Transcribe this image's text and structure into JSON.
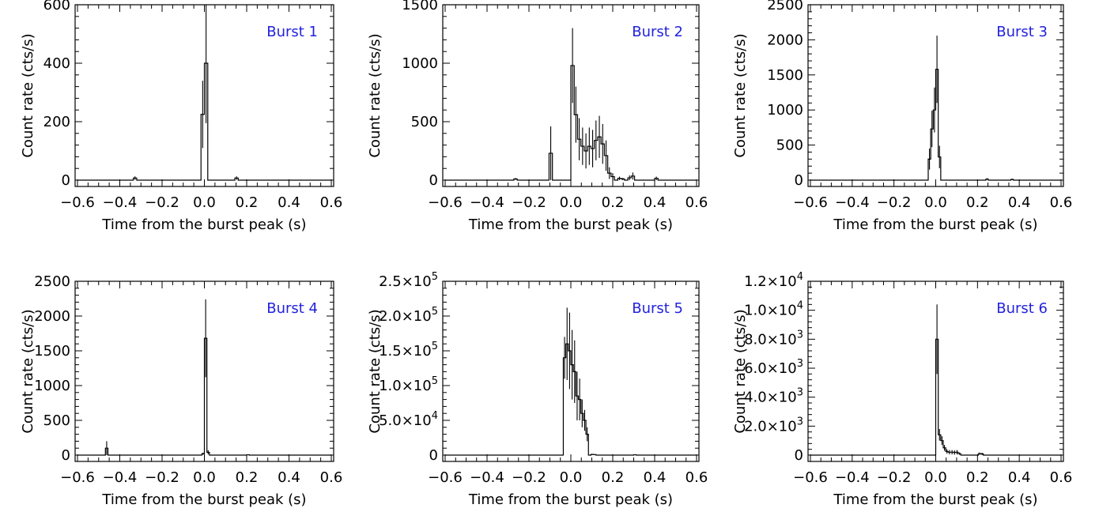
{
  "chart_data": [
    {
      "type": "histogram",
      "panel_label": "Burst 1",
      "xlabel": "Time from the burst peak (s)",
      "ylabel": "Count rate (cts/s)",
      "xlim": [
        -0.6,
        0.6
      ],
      "ylim": [
        0,
        600
      ],
      "xticks": [
        -0.6,
        -0.4,
        -0.2,
        0.0,
        0.2,
        0.4,
        0.6
      ],
      "xtick_labels": [
        "−0.6",
        "−0.4",
        "−0.2",
        "0.0",
        "0.2",
        "0.4",
        "0.6"
      ],
      "yticks": [
        0,
        200,
        400,
        600
      ],
      "ytick_labels": [
        "0",
        "200",
        "400",
        "600"
      ],
      "label_color": "#2222dd",
      "bin_width": 0.016,
      "bins": [
        {
          "x": -0.336,
          "y": 7,
          "err": 6
        },
        {
          "x": -0.032,
          "y": 0,
          "err": 0
        },
        {
          "x": -0.016,
          "y": 225,
          "err": 115
        },
        {
          "x": 0.0,
          "y": 400,
          "err": 205
        },
        {
          "x": 0.144,
          "y": 7,
          "err": 6
        }
      ]
    },
    {
      "type": "histogram",
      "panel_label": "Burst 2",
      "xlabel": "Time from the burst peak (s)",
      "ylabel": "Count rate (cts/s)",
      "xlim": [
        -0.6,
        0.6
      ],
      "ylim": [
        0,
        1500
      ],
      "xticks": [
        -0.6,
        -0.4,
        -0.2,
        0.0,
        0.2,
        0.4,
        0.6
      ],
      "xtick_labels": [
        "−0.6",
        "−0.4",
        "−0.2",
        "0.0",
        "0.2",
        "0.4",
        "0.6"
      ],
      "yticks": [
        0,
        500,
        1000,
        1500
      ],
      "ytick_labels": [
        "0",
        "500",
        "1000",
        "1500"
      ],
      "label_color": "#2222dd",
      "bin_width": 0.016,
      "bins": [
        {
          "x": -0.272,
          "y": 10,
          "err": 8
        },
        {
          "x": -0.104,
          "y": 230,
          "err": 230
        },
        {
          "x": 0.0,
          "y": 980,
          "err": 320
        },
        {
          "x": 0.016,
          "y": 560,
          "err": 240
        },
        {
          "x": 0.032,
          "y": 350,
          "err": 180
        },
        {
          "x": 0.048,
          "y": 290,
          "err": 160
        },
        {
          "x": 0.064,
          "y": 250,
          "err": 150
        },
        {
          "x": 0.08,
          "y": 290,
          "err": 160
        },
        {
          "x": 0.096,
          "y": 270,
          "err": 160
        },
        {
          "x": 0.112,
          "y": 340,
          "err": 170
        },
        {
          "x": 0.128,
          "y": 370,
          "err": 180
        },
        {
          "x": 0.144,
          "y": 310,
          "err": 170
        },
        {
          "x": 0.16,
          "y": 210,
          "err": 130
        },
        {
          "x": 0.176,
          "y": 60,
          "err": 50
        },
        {
          "x": 0.192,
          "y": 30,
          "err": 30
        },
        {
          "x": 0.224,
          "y": 15,
          "err": 15
        },
        {
          "x": 0.24,
          "y": 10,
          "err": 10
        },
        {
          "x": 0.272,
          "y": 20,
          "err": 20
        },
        {
          "x": 0.288,
          "y": 35,
          "err": 30
        },
        {
          "x": 0.4,
          "y": 15,
          "err": 15
        }
      ]
    },
    {
      "type": "histogram",
      "panel_label": "Burst 3",
      "xlabel": "Time from the burst peak (s)",
      "ylabel": "Count rate (cts/s)",
      "xlim": [
        -0.6,
        0.6
      ],
      "ylim": [
        0,
        2500
      ],
      "xticks": [
        -0.6,
        -0.4,
        -0.2,
        0.0,
        0.2,
        0.4,
        0.6
      ],
      "xtick_labels": [
        "−0.6",
        "−0.4",
        "−0.2",
        "0.0",
        "0.2",
        "0.4",
        "0.6"
      ],
      "yticks": [
        0,
        500,
        1000,
        1500,
        2000,
        2500
      ],
      "ytick_labels": [
        "0",
        "500",
        "1000",
        "1500",
        "2000",
        "2500"
      ],
      "label_color": "#2222dd",
      "bin_width": 0.012,
      "bins": [
        {
          "x": -0.036,
          "y": 300,
          "err": 150
        },
        {
          "x": -0.024,
          "y": 730,
          "err": 260
        },
        {
          "x": -0.012,
          "y": 1000,
          "err": 320
        },
        {
          "x": 0.0,
          "y": 1580,
          "err": 480
        },
        {
          "x": 0.012,
          "y": 330,
          "err": 160
        },
        {
          "x": 0.24,
          "y": 15,
          "err": 12
        },
        {
          "x": 0.36,
          "y": 10,
          "err": 10
        }
      ]
    },
    {
      "type": "histogram",
      "panel_label": "Burst 4",
      "xlabel": "Time from the burst peak (s)",
      "ylabel": "Count rate (cts/s)",
      "xlim": [
        -0.6,
        0.6
      ],
      "ylim": [
        0,
        2500
      ],
      "xticks": [
        -0.6,
        -0.4,
        -0.2,
        0.0,
        0.2,
        0.4,
        0.6
      ],
      "xtick_labels": [
        "−0.6",
        "−0.4",
        "−0.2",
        "0.0",
        "0.2",
        "0.4",
        "0.6"
      ],
      "yticks": [
        0,
        500,
        1000,
        1500,
        2000,
        2500
      ],
      "ytick_labels": [
        "0",
        "500",
        "1000",
        "1500",
        "2000",
        "2500"
      ],
      "label_color": "#2222dd",
      "bin_width": 0.012,
      "bins": [
        {
          "x": -0.468,
          "y": 100,
          "err": 100
        },
        {
          "x": -0.012,
          "y": 20,
          "err": 15
        },
        {
          "x": 0.0,
          "y": 1680,
          "err": 560
        },
        {
          "x": 0.012,
          "y": 40,
          "err": 30
        },
        {
          "x": 0.2,
          "y": 5,
          "err": 5
        }
      ]
    },
    {
      "type": "histogram",
      "panel_label": "Burst 5",
      "xlabel": "Time from the burst peak (s)",
      "ylabel": "Count rate (cts/s)",
      "xlim": [
        -0.6,
        0.6
      ],
      "ylim": [
        0,
        250000
      ],
      "xticks": [
        -0.6,
        -0.4,
        -0.2,
        0.0,
        0.2,
        0.4,
        0.6
      ],
      "xtick_labels": [
        "−0.6",
        "−0.4",
        "−0.2",
        "0.0",
        "0.2",
        "0.4",
        "0.6"
      ],
      "yticks": [
        0,
        50000,
        100000,
        150000,
        200000,
        250000
      ],
      "ytick_labels": [
        {
          "mantissa": "0",
          "exponent": ""
        },
        {
          "mantissa": "5.0×10",
          "exponent": "4"
        },
        {
          "mantissa": "1.0×10",
          "exponent": "5"
        },
        {
          "mantissa": "1.5×10",
          "exponent": "5"
        },
        {
          "mantissa": "2.0×10",
          "exponent": "5"
        },
        {
          "mantissa": "2.5×10",
          "exponent": "5"
        }
      ],
      "label_color": "#2222dd",
      "bin_width": 0.012,
      "bins": [
        {
          "x": -0.036,
          "y": 140000,
          "err": 30000
        },
        {
          "x": -0.024,
          "y": 160000,
          "err": 52000
        },
        {
          "x": -0.012,
          "y": 150000,
          "err": 55000
        },
        {
          "x": 0.0,
          "y": 130000,
          "err": 50000
        },
        {
          "x": 0.012,
          "y": 120000,
          "err": 45000
        },
        {
          "x": 0.024,
          "y": 85000,
          "err": 35000
        },
        {
          "x": 0.036,
          "y": 80000,
          "err": 30000
        },
        {
          "x": 0.048,
          "y": 60000,
          "err": 20000
        },
        {
          "x": 0.06,
          "y": 50000,
          "err": 15000
        },
        {
          "x": 0.072,
          "y": 30000,
          "err": 10000
        },
        {
          "x": 0.084,
          "y": 0,
          "err": 0
        },
        {
          "x": 0.096,
          "y": 1000,
          "err": 800
        },
        {
          "x": 0.108,
          "y": 800,
          "err": 600
        },
        {
          "x": 0.3,
          "y": 500,
          "err": 400
        }
      ]
    },
    {
      "type": "histogram",
      "panel_label": "Burst 6",
      "xlabel": "Time from the burst peak (s)",
      "ylabel": "Count rate (cts/s)",
      "xlim": [
        -0.6,
        0.6
      ],
      "ylim": [
        0,
        12000
      ],
      "xticks": [
        -0.6,
        -0.4,
        -0.2,
        0.0,
        0.2,
        0.4,
        0.6
      ],
      "xtick_labels": [
        "−0.6",
        "−0.4",
        "−0.2",
        "0.0",
        "0.2",
        "0.4",
        "0.6"
      ],
      "yticks": [
        0,
        2000,
        4000,
        6000,
        8000,
        10000,
        12000
      ],
      "ytick_labels": [
        {
          "mantissa": "0",
          "exponent": ""
        },
        {
          "mantissa": "2.0×10",
          "exponent": "3"
        },
        {
          "mantissa": "4.0×10",
          "exponent": "3"
        },
        {
          "mantissa": "6.0×10",
          "exponent": "3"
        },
        {
          "mantissa": "8.0×10",
          "exponent": "3"
        },
        {
          "mantissa": "1.0×10",
          "exponent": "4"
        },
        {
          "mantissa": "1.2×10",
          "exponent": "4"
        }
      ],
      "label_color": "#2222dd",
      "bin_width": 0.012,
      "bins": [
        {
          "x": 0.0,
          "y": 8000,
          "err": 2400
        },
        {
          "x": 0.012,
          "y": 1400,
          "err": 400
        },
        {
          "x": 0.024,
          "y": 1000,
          "err": 300
        },
        {
          "x": 0.036,
          "y": 500,
          "err": 200
        },
        {
          "x": 0.048,
          "y": 250,
          "err": 150
        },
        {
          "x": 0.06,
          "y": 200,
          "err": 150
        },
        {
          "x": 0.072,
          "y": 200,
          "err": 150
        },
        {
          "x": 0.084,
          "y": 180,
          "err": 150
        },
        {
          "x": 0.096,
          "y": 200,
          "err": 150
        },
        {
          "x": 0.108,
          "y": 100,
          "err": 80
        },
        {
          "x": 0.204,
          "y": 100,
          "err": 80
        },
        {
          "x": 0.216,
          "y": 80,
          "err": 80
        }
      ]
    }
  ]
}
